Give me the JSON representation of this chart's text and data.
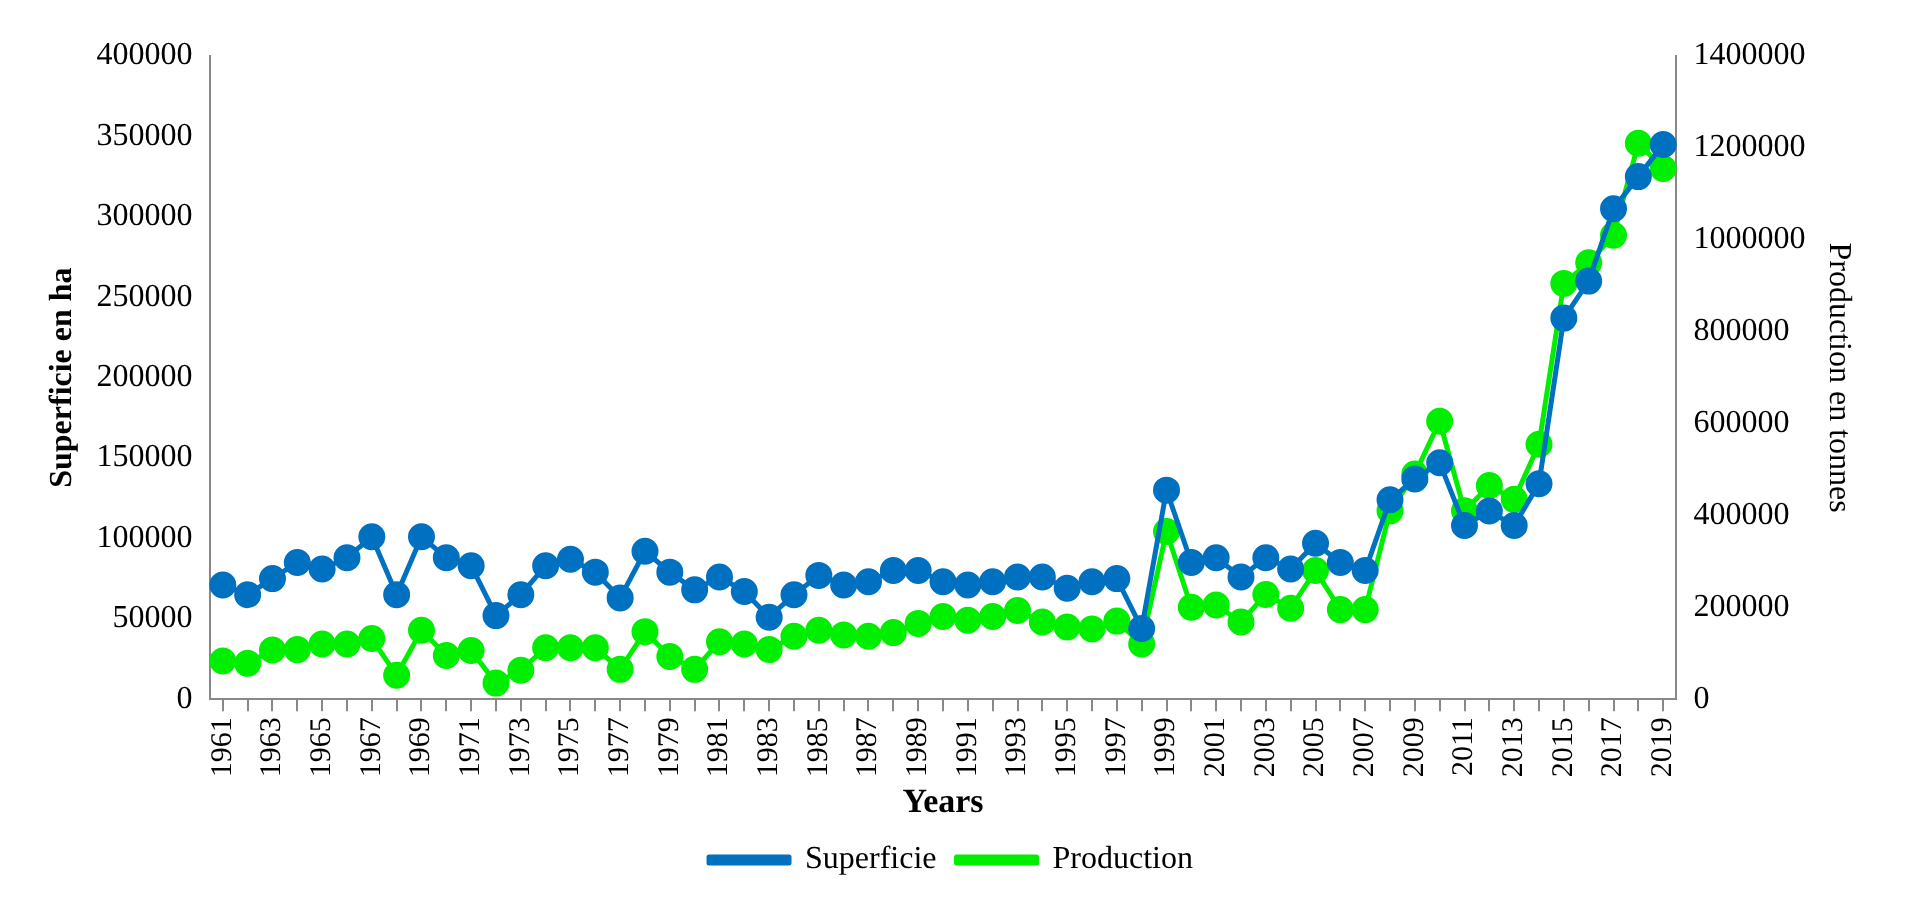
{
  "chart_data": {
    "type": "line",
    "xlabel": "Years",
    "ylabel": "Superficie en ha",
    "y2label": "Production en tonnes",
    "categories": [
      "1961",
      null,
      "1963",
      null,
      "1965",
      null,
      "1967",
      null,
      "1969",
      null,
      "1971",
      null,
      "1973",
      null,
      "1975",
      null,
      "1977",
      null,
      "1979",
      null,
      "1981",
      null,
      "1983",
      null,
      "1985",
      null,
      "1987",
      null,
      "1989",
      null,
      "1991",
      null,
      "1993",
      null,
      "1995",
      null,
      "1997",
      null,
      "1999",
      null,
      "2001",
      null,
      "2003",
      null,
      "2005",
      null,
      "2007",
      null,
      "2009",
      null,
      "2011",
      null,
      "2013",
      null,
      "2015",
      null,
      "2017",
      null,
      "2019"
    ],
    "series": [
      {
        "name": "Superficie",
        "color": "#0070c0",
        "values": [
          71000,
          65000,
          75000,
          85000,
          81000,
          88000,
          101000,
          65000,
          101000,
          88000,
          83000,
          52000,
          65000,
          83000,
          87000,
          79000,
          63000,
          92000,
          79000,
          68000,
          76000,
          67000,
          51000,
          65000,
          77000,
          71000,
          73000,
          80000,
          80000,
          73000,
          71000,
          73000,
          76000,
          76000,
          69000,
          73000,
          75000,
          44000,
          130000,
          85000,
          88000,
          76000,
          88000,
          81000,
          97000,
          85000,
          80000,
          124000,
          137000,
          147000,
          108000,
          117000,
          108000,
          134000,
          237000,
          260000,
          305000,
          325000,
          345000
        ]
      },
      {
        "name": "Production",
        "color": "#00ee00",
        "axis": "y2",
        "values": [
          83000,
          78000,
          107000,
          108000,
          120000,
          120000,
          132000,
          52000,
          150000,
          95000,
          106000,
          35000,
          63000,
          112000,
          112000,
          112000,
          65000,
          147000,
          93000,
          65000,
          125000,
          120000,
          108000,
          137000,
          150000,
          140000,
          137000,
          145000,
          165000,
          180000,
          172000,
          180000,
          193000,
          168000,
          157000,
          153000,
          170000,
          120000,
          365000,
          200000,
          205000,
          168000,
          228000,
          198000,
          280000,
          195000,
          195000,
          410000,
          490000,
          605000,
          410000,
          465000,
          435000,
          555000,
          905000,
          950000,
          1010000,
          1210000,
          1155000
        ]
      }
    ],
    "ylim": [
      0,
      400000
    ],
    "yticks": [
      0,
      50000,
      100000,
      150000,
      200000,
      250000,
      300000,
      350000,
      400000
    ],
    "y2lim": [
      0,
      1400000
    ],
    "y2ticks": [
      0,
      200000,
      400000,
      600000,
      800000,
      1000000,
      1200000,
      1400000
    ],
    "grid": false,
    "legend": "bottom",
    "marker": "circle",
    "line_style": "solid"
  }
}
